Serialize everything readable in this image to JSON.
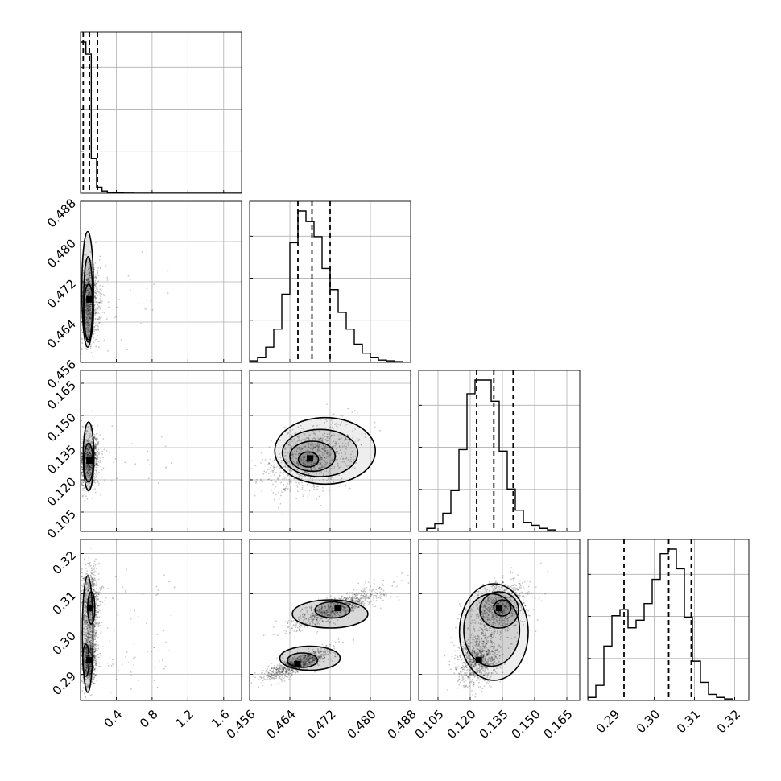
{
  "chart_data": {
    "type": "corner",
    "parameters": 4,
    "axes": [
      {
        "lim": [
          0.0,
          1.8
        ],
        "ticks": [
          0.4,
          0.8,
          1.2,
          1.6
        ],
        "tick_labels": [
          "0.4",
          "0.8",
          "1.2",
          "1.6"
        ]
      },
      {
        "lim": [
          0.456,
          0.488
        ],
        "ticks": [
          0.456,
          0.464,
          0.472,
          0.48,
          0.488
        ],
        "tick_labels": [
          "0.456",
          "0.464",
          "0.472",
          "0.480",
          "0.488"
        ]
      },
      {
        "lim": [
          0.096,
          0.171
        ],
        "ticks": [
          0.105,
          0.12,
          0.135,
          0.15,
          0.165
        ],
        "tick_labels": [
          "0.105",
          "0.120",
          "0.135",
          "0.150",
          "0.165"
        ]
      },
      {
        "lim": [
          0.2835,
          0.3235
        ],
        "ticks": [
          0.29,
          0.3,
          0.31,
          0.32
        ],
        "tick_labels": [
          "0.29",
          "0.30",
          "0.31",
          "0.32"
        ]
      }
    ],
    "marginals": [
      {
        "param": 0,
        "quantiles": [
          0.03,
          0.1,
          0.19
        ],
        "bin_start": 0.0,
        "bin_width": 0.06,
        "counts": [
          1,
          0.92,
          0.23,
          0.04,
          0.015,
          0.006,
          0.003,
          0.002,
          0.001,
          0.001,
          0,
          0,
          0,
          0,
          0,
          0,
          0,
          0,
          0,
          0,
          0,
          0,
          0,
          0,
          0,
          0,
          0,
          0,
          0,
          0
        ]
      },
      {
        "param": 1,
        "quantiles": [
          0.4656,
          0.4684,
          0.472
        ],
        "bin_start": 0.456,
        "bin_width": 0.0016,
        "counts": [
          0.01,
          0.03,
          0.1,
          0.22,
          0.45,
          0.79,
          1.0,
          0.93,
          0.83,
          0.62,
          0.48,
          0.33,
          0.22,
          0.12,
          0.06,
          0.03,
          0.015,
          0.01,
          0.005,
          0.0
        ]
      },
      {
        "param": 2,
        "quantiles": [
          0.123,
          0.131,
          0.14
        ],
        "bin_start": 0.096,
        "bin_width": 0.00375,
        "counts": [
          0.0,
          0.02,
          0.05,
          0.12,
          0.27,
          0.54,
          0.91,
          1.0,
          1.0,
          0.86,
          0.53,
          0.28,
          0.14,
          0.06,
          0.04,
          0.02,
          0.01,
          0.0,
          0.0,
          0.0
        ]
      },
      {
        "param": 3,
        "quantiles": [
          0.2925,
          0.3036,
          0.3092
        ],
        "bin_start": 0.2835,
        "bin_width": 0.002,
        "counts": [
          0.02,
          0.1,
          0.36,
          0.56,
          0.6,
          0.48,
          0.53,
          0.64,
          0.8,
          0.97,
          1.0,
          0.87,
          0.55,
          0.26,
          0.12,
          0.04,
          0.02,
          0.01,
          0.0,
          0.0
        ]
      }
    ],
    "pairs": [
      {
        "x": 0,
        "y": 1,
        "peaks": [
          [
            0.1,
            0.4685
          ]
        ],
        "spread": [
          [
            0.06,
            0.0045
          ]
        ],
        "rho": [
          0.05
        ],
        "contours": [
          [
            [
              0.09,
              0.466,
              0.055,
              0.0055
            ]
          ],
          [
            [
              0.085,
              0.4685,
              0.05,
              0.0085
            ]
          ],
          [
            [
              0.08,
              0.4705,
              0.065,
              0.0115
            ]
          ]
        ]
      },
      {
        "x": 0,
        "y": 2,
        "peaks": [
          [
            0.1,
            0.129
          ]
        ],
        "spread": [
          [
            0.06,
            0.006
          ]
        ],
        "rho": [
          0.1
        ],
        "contours": [
          [
            [
              0.09,
              0.128,
              0.05,
              0.009
            ]
          ],
          [
            [
              0.09,
              0.131,
              0.06,
              0.016
            ]
          ]
        ]
      },
      {
        "x": 0,
        "y": 3,
        "peaks": [
          [
            0.1,
            0.2935
          ],
          [
            0.11,
            0.3065
          ]
        ],
        "spread": [
          [
            0.04,
            0.003
          ],
          [
            0.05,
            0.005
          ]
        ],
        "rho": [
          0.0,
          0.0
        ],
        "contours": [
          [
            [
              0.06,
              0.2935,
              0.035,
              0.004
            ],
            [
              0.12,
              0.3065,
              0.04,
              0.004
            ]
          ],
          [
            [
              0.08,
              0.3,
              0.06,
              0.0145
            ]
          ]
        ]
      },
      {
        "x": 1,
        "y": 2,
        "peaks": [
          [
            0.468,
            0.13
          ]
        ],
        "spread": [
          [
            0.0045,
            0.008
          ]
        ],
        "rho": [
          0.45
        ],
        "contours": [
          [
            [
              0.4677,
              0.1295,
              0.002,
              0.0035
            ]
          ],
          [
            [
              0.4685,
              0.131,
              0.0045,
              0.007
            ]
          ],
          [
            [
              0.47,
              0.1325,
              0.0075,
              0.011
            ]
          ],
          [
            [
              0.471,
              0.1335,
              0.01,
              0.0155
            ]
          ]
        ]
      },
      {
        "x": 1,
        "y": 3,
        "peaks": [
          [
            0.4655,
            0.2925
          ],
          [
            0.4735,
            0.3065
          ]
        ],
        "spread": [
          [
            0.0035,
            0.002
          ],
          [
            0.0045,
            0.0025
          ]
        ],
        "rho": [
          0.85,
          0.85
        ],
        "contours": [
          [
            [
              0.4665,
              0.2935,
              0.003,
              0.0018
            ],
            [
              0.4725,
              0.306,
              0.0035,
              0.002
            ]
          ],
          [
            [
              0.468,
              0.294,
              0.006,
              0.003
            ],
            [
              0.472,
              0.305,
              0.0075,
              0.0035
            ]
          ]
        ]
      },
      {
        "x": 2,
        "y": 3,
        "peaks": [
          [
            0.1335,
            0.3065
          ],
          [
            0.124,
            0.2935
          ]
        ],
        "spread": [
          [
            0.007,
            0.0035
          ],
          [
            0.005,
            0.003
          ]
        ],
        "rho": [
          0.3,
          0.2
        ],
        "contours": [
          [
            [
              0.135,
              0.3065,
              0.004,
              0.002
            ]
          ],
          [
            [
              0.1335,
              0.306,
              0.009,
              0.0045
            ]
          ],
          [
            [
              0.13,
              0.301,
              0.013,
              0.009
            ]
          ],
          [
            [
              0.131,
              0.3005,
              0.016,
              0.012
            ]
          ]
        ]
      }
    ]
  }
}
